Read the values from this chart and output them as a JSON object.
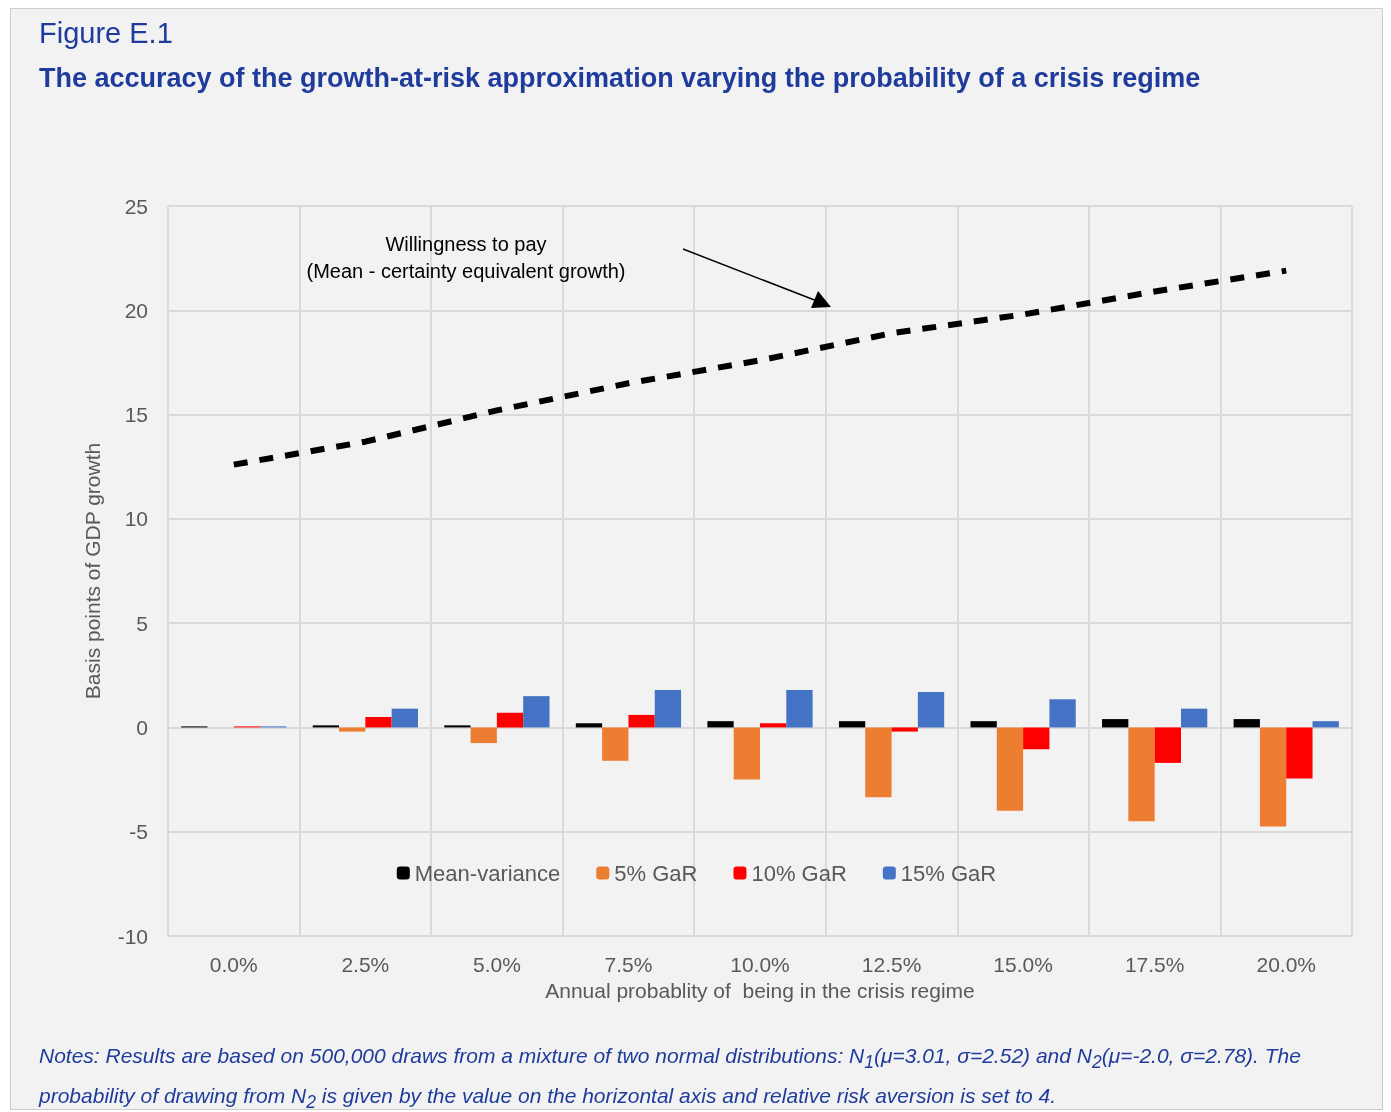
{
  "chart_data": {
    "type": "bar",
    "title": "The accuracy of the growth-at-risk approximation varying the probability of a crisis regime",
    "subtitle": "Figure E.1",
    "xlabel": "Annual probablity of  being in the crisis regime",
    "ylabel": "Basis points of GDP growth",
    "categories": [
      "0.0%",
      "2.5%",
      "5.0%",
      "7.5%",
      "10.0%",
      "12.5%",
      "15.0%",
      "17.5%",
      "20.0%"
    ],
    "series": [
      {
        "name": "Mean-variance",
        "color": "#000000",
        "values": [
          0.05,
          0.1,
          0.1,
          0.2,
          0.3,
          0.3,
          0.3,
          0.4,
          0.4
        ]
      },
      {
        "name": "5% GaR",
        "color": "#ed7d31",
        "values": [
          0,
          -0.2,
          -0.75,
          -1.6,
          -2.5,
          -3.35,
          -4.0,
          -4.5,
          -4.75
        ]
      },
      {
        "name": "10% GaR",
        "color": "#ff0000",
        "values": [
          0.05,
          0.5,
          0.7,
          0.6,
          0.2,
          -0.2,
          -1.05,
          -1.7,
          -2.45
        ]
      },
      {
        "name": "15% GaR",
        "color": "#4472c4",
        "values": [
          0.05,
          0.9,
          1.5,
          1.8,
          1.8,
          1.7,
          1.35,
          0.9,
          0.3
        ]
      },
      {
        "type": "line",
        "color": "#000000",
        "line_style": "dashed",
        "marker": "none",
        "values": [
          12.6,
          13.7,
          15.2,
          16.5,
          17.6,
          18.9,
          19.8,
          20.9,
          21.9
        ]
      }
    ],
    "ylim": [
      -10,
      25
    ],
    "yticks": [
      -10,
      -5,
      0,
      5,
      10,
      15,
      20,
      25
    ],
    "grid": true,
    "legend": "bottom",
    "annotations": [
      "Willingness to pay\n(Mean - certainty equivalent growth)",
      "Notes: Results are based on 500,000 draws from a mixture of two normal distributions: N$_{1}$(μ=3.01, σ=2.52) and N$_{2}$(μ=-2.0, σ=2.78). The probability of drawing from N$_{2}$ is given by the value on the horizontal axis and relative risk aversion is set to 4."
    ]
  }
}
